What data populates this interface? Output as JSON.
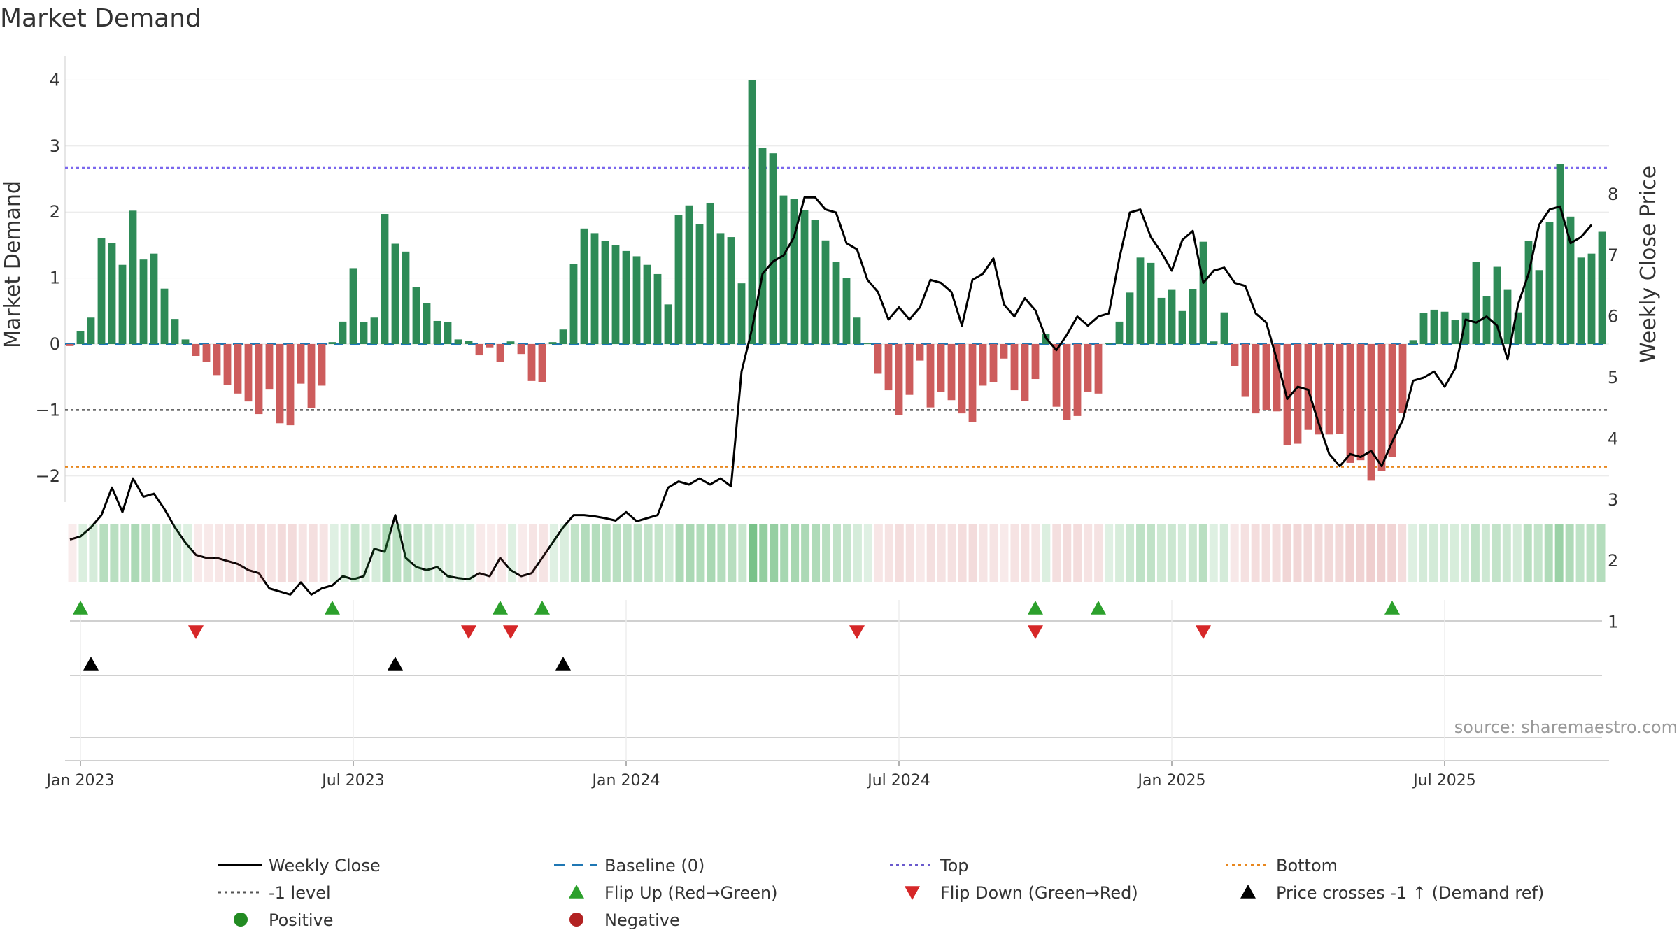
{
  "chart_data": {
    "type": "bar",
    "title": "Market Demand",
    "ylabel": "Market Demand",
    "y2label": "Weekly Close Price",
    "ylim": [
      -2.3,
      4.1
    ],
    "y2lim": [
      1,
      8
    ],
    "yticks": [
      "−2",
      "−1",
      "0",
      "1",
      "2",
      "3",
      "4"
    ],
    "yticks_values": [
      -2,
      -1,
      0,
      1,
      2,
      3,
      4
    ],
    "y2ticks": [
      "1",
      "2",
      "3",
      "4",
      "5",
      "6",
      "7",
      "8"
    ],
    "y2ticks_values": [
      1,
      2,
      3,
      4,
      5,
      6,
      7,
      8
    ],
    "x_labels": [
      {
        "label": "Jan 2023",
        "week": 1
      },
      {
        "label": "Jul 2023",
        "week": 27
      },
      {
        "label": "Jan 2024",
        "week": 53
      },
      {
        "label": "Jul 2024",
        "week": 79
      },
      {
        "label": "Jan 2025",
        "week": 105
      },
      {
        "label": "Jul 2025",
        "week": 131
      }
    ],
    "reference_lines": {
      "top": 2.67,
      "bottom": -1.86,
      "minus_one": -1,
      "baseline": 0
    },
    "demand": [
      -0.03,
      0.2,
      0.4,
      1.6,
      1.53,
      1.2,
      2.02,
      1.28,
      1.37,
      0.84,
      0.38,
      0.07,
      -0.18,
      -0.27,
      -0.47,
      -0.62,
      -0.75,
      -0.87,
      -1.06,
      -0.69,
      -1.2,
      -1.23,
      -0.6,
      -0.97,
      -0.63,
      0.03,
      0.34,
      1.15,
      0.33,
      0.4,
      1.97,
      1.52,
      1.4,
      0.86,
      0.62,
      0.35,
      0.33,
      0.07,
      0.05,
      -0.17,
      -0.05,
      -0.27,
      0.04,
      -0.15,
      -0.56,
      -0.58,
      0.03,
      0.22,
      1.21,
      1.75,
      1.68,
      1.56,
      1.5,
      1.41,
      1.33,
      1.2,
      1.06,
      0.6,
      1.95,
      2.1,
      1.82,
      2.14,
      1.68,
      1.62,
      0.92,
      4.0,
      2.97,
      2.89,
      2.25,
      2.2,
      2.03,
      1.88,
      1.57,
      1.25,
      1.0,
      0.4,
      0.01,
      -0.45,
      -0.7,
      -1.07,
      -0.77,
      -0.25,
      -0.96,
      -0.73,
      -0.85,
      -1.05,
      -1.18,
      -0.63,
      -0.58,
      -0.22,
      -0.7,
      -0.86,
      -0.53,
      0.15,
      -0.95,
      -1.15,
      -1.09,
      -0.72,
      -0.75,
      0.01,
      0.34,
      0.78,
      1.31,
      1.23,
      0.7,
      0.82,
      0.5,
      0.83,
      1.55,
      0.04,
      0.48,
      -0.33,
      -0.8,
      -1.05,
      -1.0,
      -1.02,
      -1.53,
      -1.51,
      -1.3,
      -1.37,
      -1.37,
      -1.36,
      -1.8,
      -1.76,
      -2.07,
      -1.92,
      -1.71,
      -1.04,
      0.06,
      0.47,
      0.52,
      0.49,
      0.36,
      0.48,
      1.25,
      0.73,
      1.17,
      0.82,
      0.48,
      1.56,
      1.12,
      1.85,
      2.73,
      1.93,
      1.31,
      1.37,
      1.7
    ],
    "weekly_close": [
      2.35,
      2.4,
      2.55,
      2.75,
      3.2,
      2.8,
      3.35,
      3.05,
      3.1,
      2.85,
      2.55,
      2.3,
      2.1,
      2.05,
      2.05,
      2.0,
      1.95,
      1.85,
      1.8,
      1.55,
      1.5,
      1.45,
      1.65,
      1.45,
      1.55,
      1.6,
      1.75,
      1.7,
      1.75,
      2.2,
      2.15,
      2.75,
      2.05,
      1.9,
      1.85,
      1.9,
      1.75,
      1.72,
      1.7,
      1.8,
      1.75,
      2.05,
      1.85,
      1.75,
      1.8,
      2.05,
      2.3,
      2.55,
      2.75,
      2.75,
      2.73,
      2.7,
      2.66,
      2.8,
      2.65,
      2.7,
      2.75,
      3.2,
      3.3,
      3.25,
      3.35,
      3.25,
      3.35,
      3.22,
      5.1,
      5.8,
      6.7,
      6.9,
      7.0,
      7.3,
      7.95,
      7.95,
      7.75,
      7.7,
      7.2,
      7.1,
      6.6,
      6.4,
      5.95,
      6.15,
      5.95,
      6.15,
      6.6,
      6.55,
      6.4,
      5.85,
      6.6,
      6.7,
      6.95,
      6.2,
      6.0,
      6.3,
      6.1,
      5.65,
      5.45,
      5.7,
      6.0,
      5.85,
      6.0,
      6.05,
      6.95,
      7.7,
      7.75,
      7.3,
      7.05,
      6.75,
      7.25,
      7.4,
      6.55,
      6.75,
      6.8,
      6.55,
      6.5,
      6.05,
      5.9,
      5.3,
      4.65,
      4.85,
      4.8,
      4.25,
      3.75,
      3.55,
      3.75,
      3.7,
      3.8,
      3.55,
      3.95,
      4.3,
      4.95,
      5.0,
      5.1,
      4.85,
      5.15,
      5.95,
      5.9,
      6.0,
      5.85,
      5.3,
      6.2,
      6.7,
      7.5,
      7.75,
      7.8,
      7.2,
      7.3,
      7.5
    ],
    "flip_up_weeks": [
      0,
      24,
      40,
      44,
      91,
      97,
      125
    ],
    "flip_down_weeks": [
      11,
      37,
      41,
      74,
      91,
      107
    ],
    "price_cross_weeks": [
      1,
      30,
      46
    ],
    "legend": [
      {
        "label": "Weekly Close",
        "kind": "line",
        "color": "#000000"
      },
      {
        "label": "Baseline (0)",
        "kind": "dash",
        "color": "#1f77b4"
      },
      {
        "label": "Top",
        "kind": "dot",
        "color": "#6a5acd"
      },
      {
        "label": "Bottom",
        "kind": "dot",
        "color": "#e8871e"
      },
      {
        "label": "-1 level",
        "kind": "dot",
        "color": "#555555"
      },
      {
        "label": "Flip Up (Red→Green)",
        "kind": "tri-up",
        "color": "#2ca02c"
      },
      {
        "label": "Flip Down (Green→Red)",
        "kind": "tri-down",
        "color": "#d62728"
      },
      {
        "label": "Price crosses -1 ↑ (Demand ref)",
        "kind": "tri-up",
        "color": "#000000"
      },
      {
        "label": "Positive",
        "kind": "circle",
        "color": "#228b22"
      },
      {
        "label": "Negative",
        "kind": "circle",
        "color": "#b22222"
      }
    ],
    "source": "source: sharemaestro.com"
  },
  "colors": {
    "positive_bar": "#2e8b57",
    "negative_bar": "#cd5c5c",
    "flip_up": "#2ca02c",
    "flip_down": "#d62728"
  }
}
